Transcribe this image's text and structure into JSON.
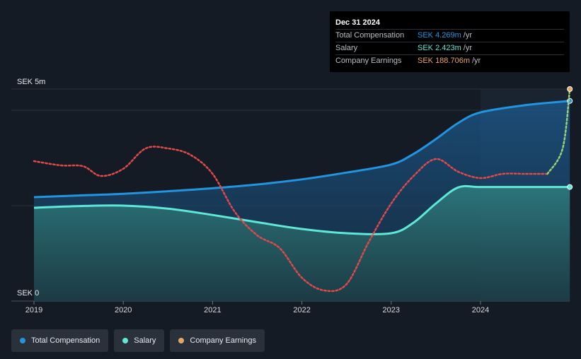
{
  "tooltip": {
    "date": "Dec 31 2024",
    "rows": [
      {
        "name": "Total Compensation",
        "value": "SEK 4.269m",
        "unit": "/yr",
        "color": "#2394df"
      },
      {
        "name": "Salary",
        "value": "SEK 2.423m",
        "unit": "/yr",
        "color": "#5ee8d6"
      },
      {
        "name": "Company Earnings",
        "value": "SEK 188.706m",
        "unit": "/yr",
        "color": "#e8a75f"
      }
    ]
  },
  "y_axis": {
    "top_label": "SEK 5m",
    "bottom_label": "SEK 0"
  },
  "legend": [
    {
      "label": "Total Compensation",
      "color": "#2394df"
    },
    {
      "label": "Salary",
      "color": "#5ee8d6"
    },
    {
      "label": "Company Earnings",
      "color": "#e8a75f"
    }
  ],
  "chart_data": {
    "type": "line",
    "xlabel": "",
    "ylabel": "",
    "ylim": [
      0,
      5
    ],
    "xlim": [
      2019.0,
      2025.0
    ],
    "x_ticks": [
      "2019",
      "2020",
      "2021",
      "2022",
      "2023",
      "2024"
    ],
    "grid": true,
    "highlight_range": [
      2024.0,
      2025.0
    ],
    "series": [
      {
        "name": "Total Compensation",
        "color": "#2394df",
        "style": "solid-area",
        "x": [
          2019.0,
          2019.5,
          2020.0,
          2020.5,
          2021.0,
          2021.5,
          2022.0,
          2022.5,
          2023.0,
          2023.25,
          2023.5,
          2023.75,
          2024.0,
          2024.5,
          2025.0
        ],
        "y": [
          2.45,
          2.49,
          2.53,
          2.59,
          2.66,
          2.75,
          2.87,
          3.03,
          3.22,
          3.47,
          3.82,
          4.2,
          4.45,
          4.62,
          4.72
        ]
      },
      {
        "name": "Salary",
        "color": "#5ee8d6",
        "style": "solid-area",
        "x": [
          2019.0,
          2019.5,
          2020.0,
          2020.5,
          2021.0,
          2021.5,
          2022.0,
          2022.5,
          2023.0,
          2023.25,
          2023.5,
          2023.75,
          2024.0,
          2024.5,
          2025.0
        ],
        "y": [
          2.2,
          2.24,
          2.25,
          2.18,
          2.03,
          1.86,
          1.7,
          1.6,
          1.6,
          1.85,
          2.3,
          2.68,
          2.69,
          2.69,
          2.69
        ]
      },
      {
        "name": "Company Earnings",
        "color": "#e8a75f",
        "style": "dotted",
        "x": [
          2019.0,
          2019.3,
          2019.55,
          2019.75,
          2020.0,
          2020.25,
          2020.5,
          2020.75,
          2021.0,
          2021.25,
          2021.5,
          2021.75,
          2022.0,
          2022.25,
          2022.5,
          2022.75,
          2023.0,
          2023.25,
          2023.5,
          2023.75,
          2024.0,
          2024.25,
          2024.5,
          2024.75,
          2024.92,
          2025.0
        ],
        "y": [
          3.3,
          3.2,
          3.18,
          2.95,
          3.12,
          3.6,
          3.6,
          3.45,
          3.0,
          2.1,
          1.55,
          1.25,
          0.55,
          0.25,
          0.4,
          1.4,
          2.3,
          2.95,
          3.35,
          3.05,
          2.9,
          3.0,
          3.0,
          3.0,
          3.6,
          5.0
        ]
      }
    ]
  }
}
